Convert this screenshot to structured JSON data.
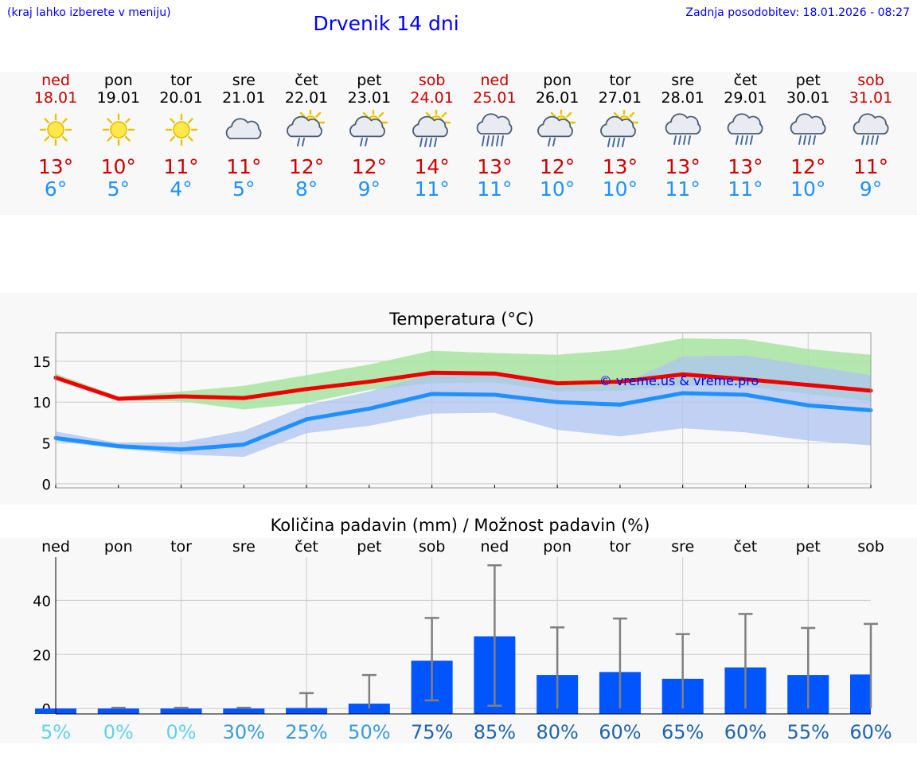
{
  "header": {
    "hint": "(kraj lahko izberete v meniju)",
    "title": "Drvenik 14 dni",
    "updated": "Zadnja posodobitev: 18.01.2026 - 08:27"
  },
  "colors": {
    "link_blue": "#0000ff",
    "max_red": "#cc0000",
    "min_blue": "#1e90ff",
    "max_line": "#ee0000",
    "min_line": "#1e90ff",
    "max_band": "#a8e4a0",
    "min_band": "#aec4f2",
    "overlap_band": "#7fc0a8",
    "bar": "#0055ff",
    "errbar": "#808080"
  },
  "days": [
    {
      "name": "ned",
      "date": "18.01",
      "icon": "sun-icon",
      "max": "13°",
      "min": "6°",
      "weekend": true
    },
    {
      "name": "pon",
      "date": "19.01",
      "icon": "sun-icon",
      "max": "10°",
      "min": "5°",
      "weekend": false
    },
    {
      "name": "tor",
      "date": "20.01",
      "icon": "sun-icon",
      "max": "11°",
      "min": "4°",
      "weekend": false
    },
    {
      "name": "sre",
      "date": "21.01",
      "icon": "cloud-icon",
      "max": "11°",
      "min": "5°",
      "weekend": false
    },
    {
      "name": "čet",
      "date": "22.01",
      "icon": "sun-cloud-light-rain-icon",
      "max": "12°",
      "min": "8°",
      "weekend": false
    },
    {
      "name": "pet",
      "date": "23.01",
      "icon": "sun-cloud-light-rain-icon",
      "max": "12°",
      "min": "9°",
      "weekend": false
    },
    {
      "name": "sob",
      "date": "24.01",
      "icon": "sun-cloud-rain-icon",
      "max": "14°",
      "min": "11°",
      "weekend": true
    },
    {
      "name": "ned",
      "date": "25.01",
      "icon": "cloud-heavy-rain-icon",
      "max": "13°",
      "min": "11°",
      "weekend": true
    },
    {
      "name": "pon",
      "date": "26.01",
      "icon": "sun-cloud-light-rain-icon",
      "max": "12°",
      "min": "10°",
      "weekend": false
    },
    {
      "name": "tor",
      "date": "27.01",
      "icon": "sun-cloud-rain-icon",
      "max": "13°",
      "min": "10°",
      "weekend": false
    },
    {
      "name": "sre",
      "date": "28.01",
      "icon": "cloud-rain-icon",
      "max": "13°",
      "min": "11°",
      "weekend": false
    },
    {
      "name": "čet",
      "date": "29.01",
      "icon": "cloud-rain-icon",
      "max": "13°",
      "min": "11°",
      "weekend": false
    },
    {
      "name": "pet",
      "date": "30.01",
      "icon": "cloud-rain-icon",
      "max": "12°",
      "min": "10°",
      "weekend": false
    },
    {
      "name": "sob",
      "date": "31.01",
      "icon": "cloud-rain-icon",
      "max": "11°",
      "min": "9°",
      "weekend": true
    }
  ],
  "chart_data": [
    {
      "type": "line",
      "title": "Temperatura (°C)",
      "watermark": "© vreme.us & vreme.pro",
      "x": [
        0,
        1,
        2,
        3,
        4,
        5,
        6,
        7,
        8,
        9,
        10,
        11,
        12,
        13
      ],
      "ylim": [
        -0.5,
        18.5
      ],
      "yticks": [
        0,
        5,
        10,
        15
      ],
      "grid": true,
      "series": [
        {
          "name": "max",
          "values": [
            13.0,
            10.4,
            10.7,
            10.5,
            11.6,
            12.5,
            13.6,
            13.5,
            12.3,
            12.5,
            13.4,
            12.8,
            12.1,
            11.4
          ]
        },
        {
          "name": "min",
          "values": [
            5.6,
            4.6,
            4.2,
            4.8,
            7.9,
            9.2,
            11.0,
            10.9,
            10.0,
            9.7,
            11.1,
            10.9,
            9.6,
            9.0
          ]
        }
      ],
      "bands": [
        {
          "name": "max_range",
          "low": [
            12.8,
            10.2,
            10.1,
            9.1,
            9.9,
            11.5,
            12.3,
            12.4,
            11.3,
            11.4,
            12.0,
            11.9,
            11.0,
            10.1
          ],
          "high": [
            13.5,
            10.7,
            11.3,
            12.0,
            13.3,
            14.6,
            16.3,
            16.0,
            15.8,
            16.4,
            17.8,
            17.7,
            16.5,
            15.8
          ]
        },
        {
          "name": "min_range",
          "low": [
            5.2,
            4.3,
            3.6,
            3.3,
            6.2,
            7.1,
            8.6,
            8.7,
            6.6,
            5.8,
            6.8,
            6.3,
            5.3,
            4.7
          ],
          "high": [
            6.4,
            5.0,
            5.1,
            6.5,
            9.6,
            11.3,
            13.5,
            13.6,
            12.0,
            12.1,
            15.6,
            15.7,
            14.5,
            13.3
          ]
        }
      ]
    },
    {
      "type": "bar",
      "title": "Količina padavin (mm) / Možnost padavin (%)",
      "categories": [
        "ned",
        "pon",
        "tor",
        "sre",
        "čet",
        "pet",
        "sob",
        "ned",
        "pon",
        "tor",
        "sre",
        "čet",
        "pet",
        "sob"
      ],
      "values": [
        0,
        0,
        0,
        0,
        0.2,
        1.8,
        17.7,
        26.7,
        12.4,
        13.5,
        11.0,
        15.2,
        12.4,
        12.6
      ],
      "err_low": [
        0,
        0,
        0,
        0,
        0,
        0,
        3,
        1,
        0,
        0,
        0,
        0,
        0,
        0
      ],
      "err_high": [
        0,
        0.3,
        0.3,
        0.3,
        5.7,
        12.4,
        33.5,
        53.0,
        30.0,
        33.3,
        27.5,
        35.0,
        29.8,
        31.3
      ],
      "probability": [
        "5%",
        "0%",
        "0%",
        "30%",
        "25%",
        "50%",
        "75%",
        "85%",
        "80%",
        "60%",
        "65%",
        "60%",
        "55%",
        "60%"
      ],
      "prob_colors": [
        "#5fd2e8",
        "#5fd2e8",
        "#5fd2e8",
        "#3a9cd6",
        "#3a9cd6",
        "#3a9cd6",
        "#1f64b0",
        "#1f64b0",
        "#1f64b0",
        "#1f64b0",
        "#1f64b0",
        "#1f64b0",
        "#1f64b0",
        "#1f64b0"
      ],
      "ylim": [
        -2,
        56
      ],
      "yticks": [
        0,
        20,
        40
      ],
      "grid": true
    }
  ]
}
